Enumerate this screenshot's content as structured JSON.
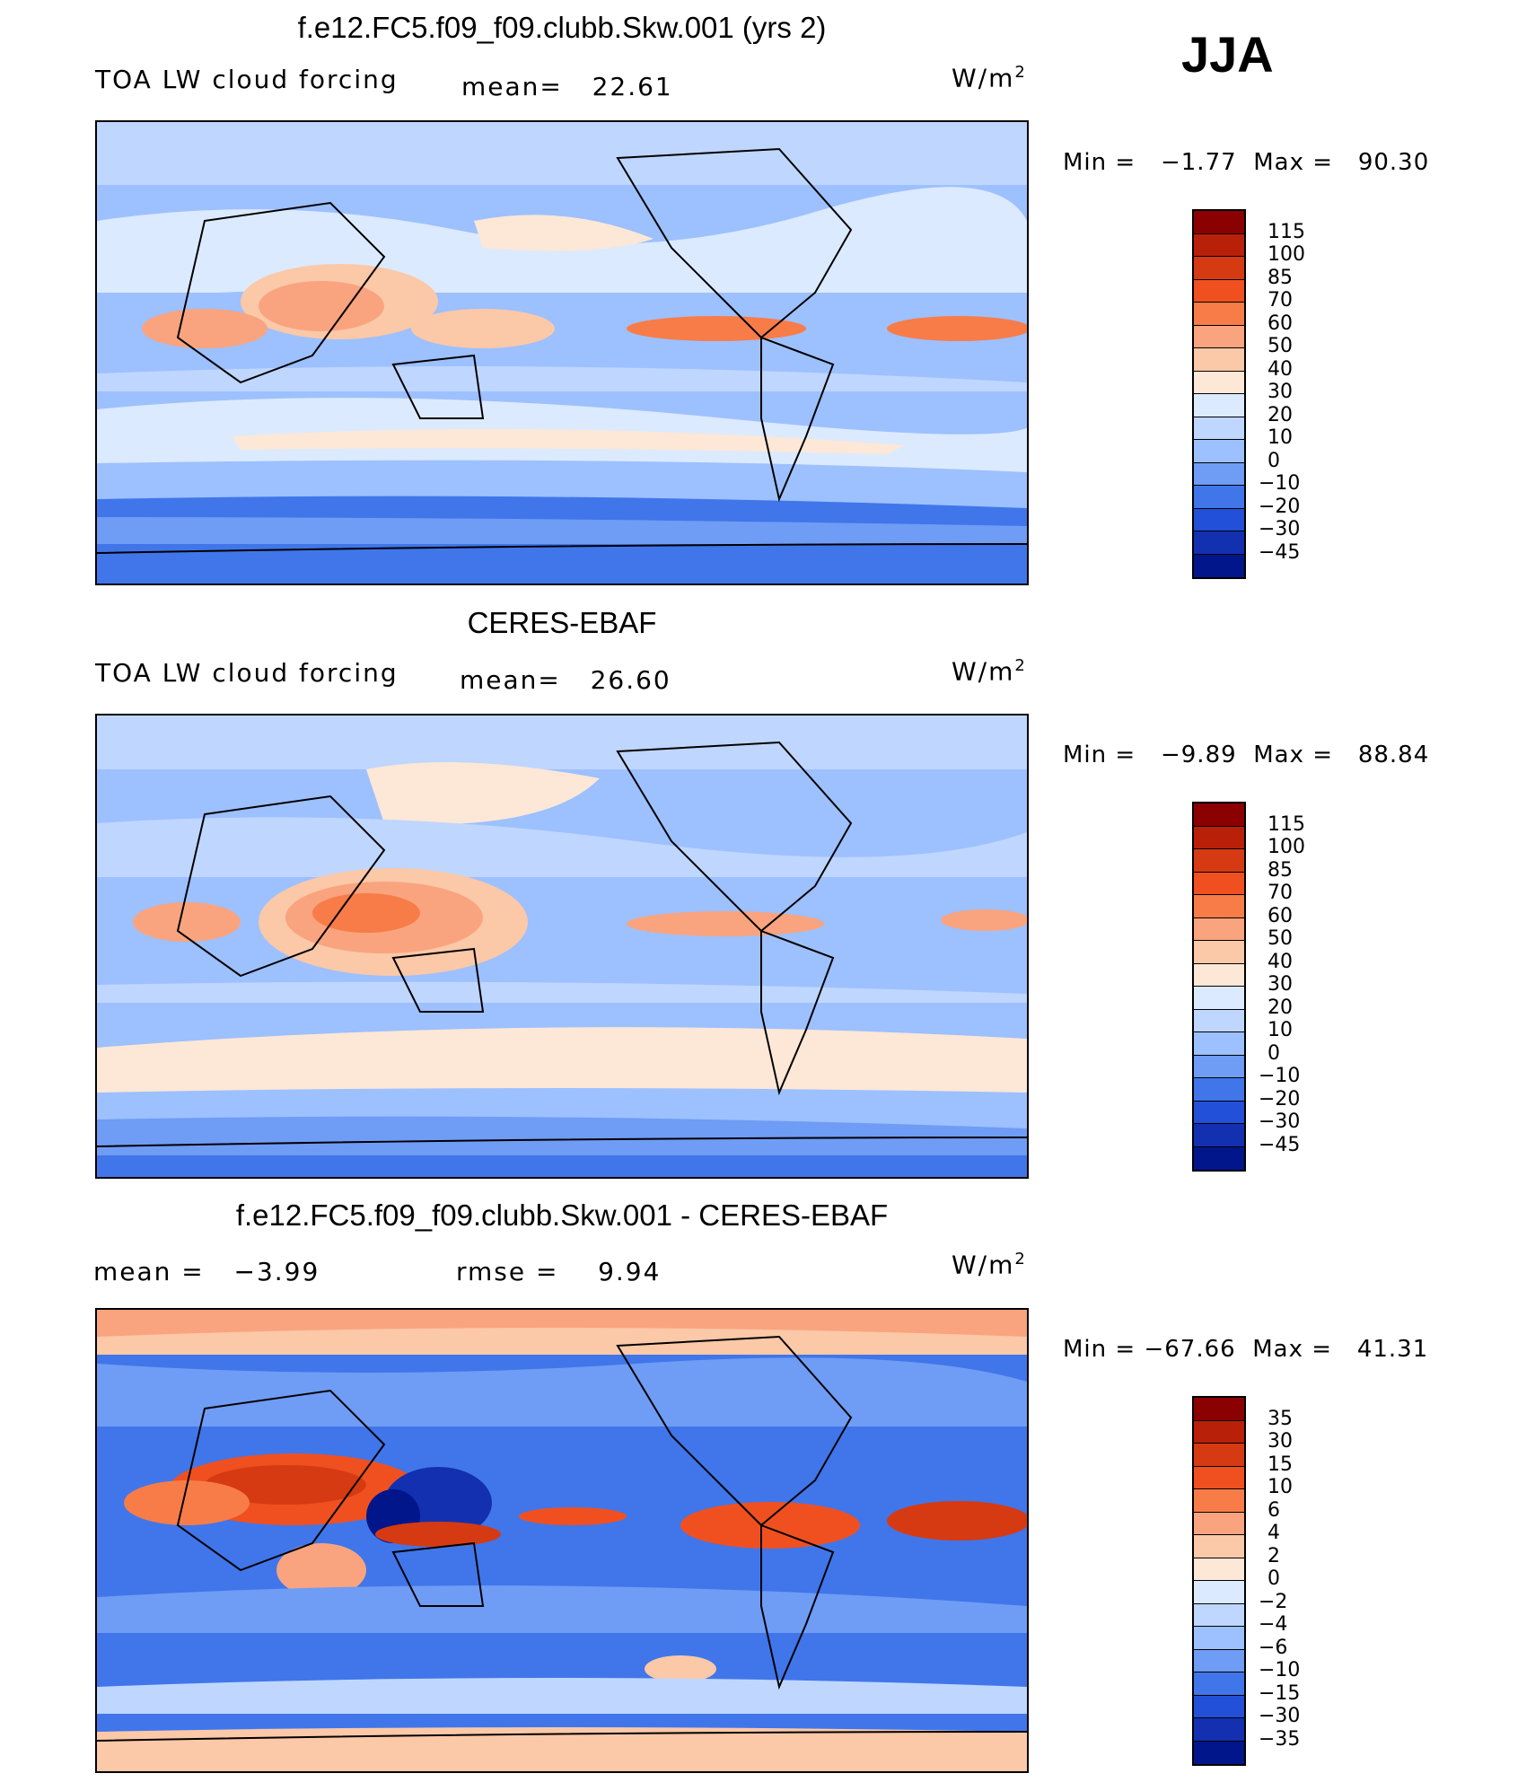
{
  "season": "JJA",
  "units": "W/m",
  "units_sup": "2",
  "chart_data": [
    {
      "type": "heatmap",
      "title": "f.e12.FC5.f09_f09.clubb.Skw.001 (yrs 2)",
      "variable": "TOA LW cloud forcing",
      "mean_label": "mean=",
      "mean": "22.61",
      "min_label": "Min  =",
      "min": "−1.77",
      "max_label": "Max  =",
      "max": "90.30",
      "contour_levels": [
        "115",
        "100",
        "85",
        "70",
        "60",
        "50",
        "40",
        "30",
        "20",
        "10",
        "0",
        "−10",
        "−20",
        "−30",
        "−45"
      ],
      "colors": [
        "#8b0000",
        "#b8200a",
        "#d63a12",
        "#f05020",
        "#f87c48",
        "#f9a47e",
        "#fbc8a8",
        "#fde7d6",
        "#dbeaff",
        "#bfd6ff",
        "#9dc0ff",
        "#6f9cf4",
        "#4076ea",
        "#2250d8",
        "#1230b0",
        "#00168a"
      ]
    },
    {
      "type": "heatmap",
      "title": "CERES-EBAF",
      "variable": "TOA LW cloud forcing",
      "mean_label": "mean=",
      "mean": "26.60",
      "min_label": "Min  =",
      "min": "−9.89",
      "max_label": "Max  =",
      "max": "88.84",
      "contour_levels": [
        "115",
        "100",
        "85",
        "70",
        "60",
        "50",
        "40",
        "30",
        "20",
        "10",
        "0",
        "−10",
        "−20",
        "−30",
        "−45"
      ],
      "colors": [
        "#8b0000",
        "#b8200a",
        "#d63a12",
        "#f05020",
        "#f87c48",
        "#f9a47e",
        "#fbc8a8",
        "#fde7d6",
        "#dbeaff",
        "#bfd6ff",
        "#9dc0ff",
        "#6f9cf4",
        "#4076ea",
        "#2250d8",
        "#1230b0",
        "#00168a"
      ]
    },
    {
      "type": "heatmap",
      "title": "f.e12.FC5.f09_f09.clubb.Skw.001 - CERES-EBAF",
      "variable": "",
      "mean_label": "mean  =",
      "mean": "−3.99",
      "rmse_label": "rmse  =",
      "rmse": "9.94",
      "min_label": "Min  =",
      "min": "−67.66",
      "max_label": "Max  =",
      "max": "41.31",
      "contour_levels": [
        "35",
        "30",
        "15",
        "10",
        "6",
        "4",
        "2",
        "0",
        "−2",
        "−4",
        "−6",
        "−10",
        "−15",
        "−30",
        "−35"
      ],
      "colors": [
        "#8b0000",
        "#b8200a",
        "#d63a12",
        "#f05020",
        "#f87c48",
        "#f9a47e",
        "#fbc8a8",
        "#fde7d6",
        "#dbeaff",
        "#bfd6ff",
        "#9dc0ff",
        "#6f9cf4",
        "#4076ea",
        "#2250d8",
        "#1230b0",
        "#00168a"
      ]
    }
  ]
}
